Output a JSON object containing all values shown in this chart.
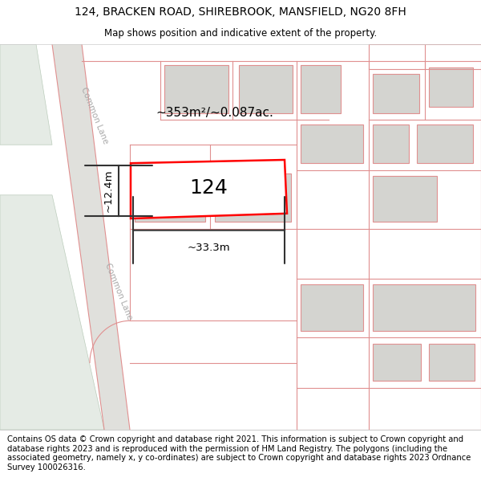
{
  "title": "124, BRACKEN ROAD, SHIREBROOK, MANSFIELD, NG20 8FH",
  "subtitle": "Map shows position and indicative extent of the property.",
  "footer": "Contains OS data © Crown copyright and database right 2021. This information is subject to Crown copyright and database rights 2023 and is reproduced with the permission of HM Land Registry. The polygons (including the associated geometry, namely x, y co-ordinates) are subject to Crown copyright and database rights 2023 Ordnance Survey 100026316.",
  "area_label": "~353m²/~0.087ac.",
  "width_label": "~33.3m",
  "height_label": "~12.4m",
  "plot_number": "124",
  "map_bg": "#f7f7f4",
  "road_fill": "#e0e0dc",
  "building_fill": "#d4d4d0",
  "pink": "#e09090",
  "road_label1": "Common Lane",
  "road_label2": "Common Lane",
  "title_fontsize": 10,
  "subtitle_fontsize": 8.5,
  "footer_fontsize": 7.2,
  "label_fontsize": 11,
  "number_fontsize": 18
}
